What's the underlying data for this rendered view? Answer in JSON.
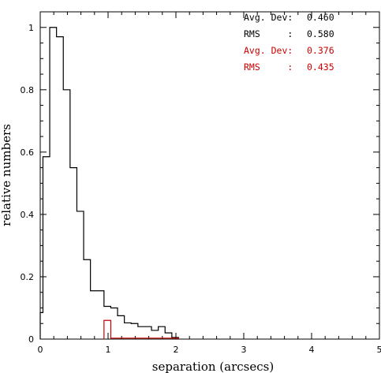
{
  "chart_data": {
    "type": "step-histogram",
    "xlabel": "separation (arcsecs)",
    "ylabel": "relative numbers",
    "xlim": [
      0,
      5
    ],
    "ylim": [
      0,
      1.05
    ],
    "xticks": [
      0,
      1,
      2,
      3,
      4,
      5
    ],
    "yticks": [
      0,
      0.2,
      0.4,
      0.6,
      0.8,
      1
    ],
    "xtick_labels": [
      "0",
      "1",
      "2",
      "3",
      "4",
      "5"
    ],
    "ytick_labels": [
      "0",
      "0.2",
      "0.4",
      "0.6",
      "0.8",
      "1"
    ],
    "grid": false,
    "series": [
      {
        "color": "#000000",
        "edges": [
          0.0,
          0.04,
          0.14,
          0.24,
          0.34,
          0.44,
          0.54,
          0.64,
          0.74,
          0.94,
          1.04,
          1.14,
          1.24,
          1.34,
          1.44,
          1.54,
          1.64,
          1.74,
          1.84,
          1.94,
          2.04
        ],
        "values": [
          0.085,
          0.585,
          1.0,
          0.97,
          0.8,
          0.55,
          0.41,
          0.255,
          0.155,
          0.105,
          0.1,
          0.075,
          0.052,
          0.05,
          0.04,
          0.04,
          0.028,
          0.04,
          0.02,
          0.005
        ]
      },
      {
        "color": "#cc0000",
        "edges": [
          0.94,
          1.04,
          2.04
        ],
        "values": [
          0.06,
          0.003
        ]
      }
    ],
    "stats": [
      {
        "label": "Avg. Dev:",
        "value": "0.460",
        "color": "#000000"
      },
      {
        "label": "RMS     :",
        "value": "0.580",
        "color": "#000000"
      },
      {
        "label": "Avg. Dev:",
        "value": "0.376",
        "color": "#cc0000"
      },
      {
        "label": "RMS     :",
        "value": "0.435",
        "color": "#cc0000"
      }
    ]
  }
}
